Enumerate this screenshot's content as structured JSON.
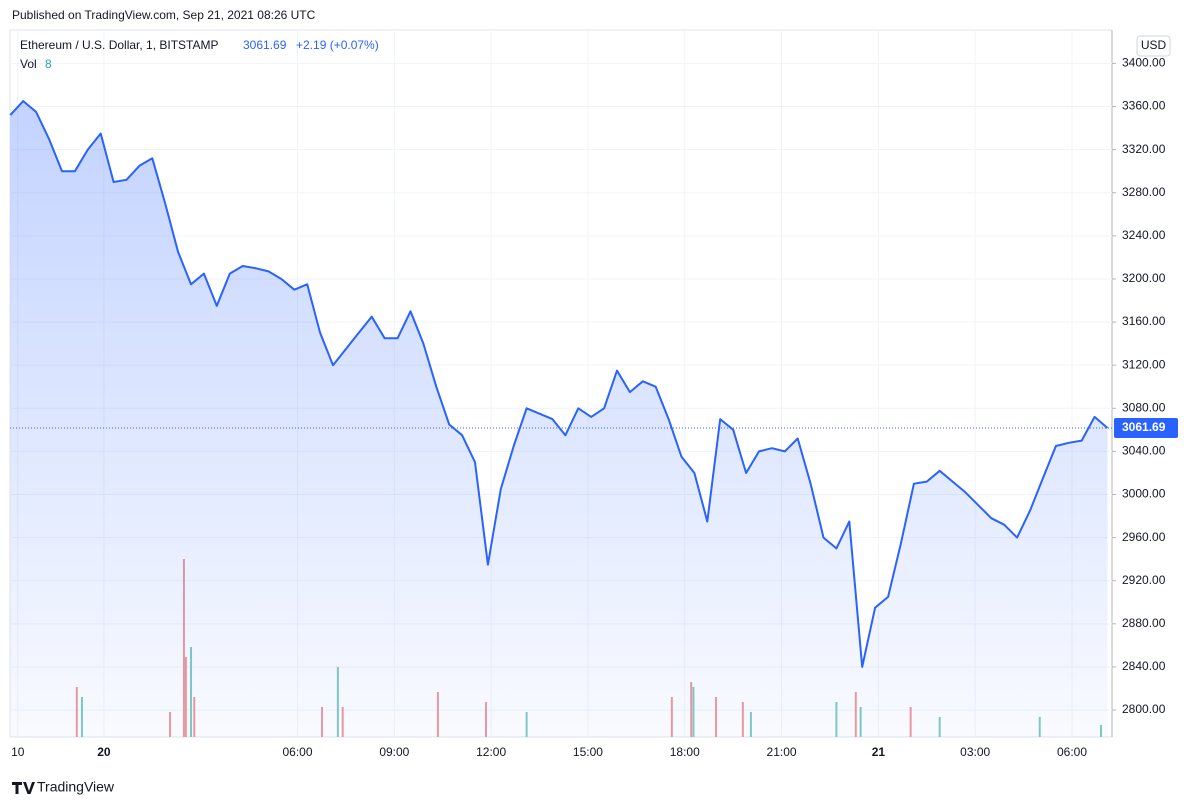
{
  "header": {
    "published": "Published on TradingView.com, Sep 21, 2021 08:26 UTC"
  },
  "footer": {
    "brand": "TradingView"
  },
  "chart_data": {
    "type": "area",
    "currency": "USD",
    "change": "+2.19 (+0.07%)",
    "x": [
      -2.9,
      -2.5,
      -2.1,
      -1.7,
      -1.3,
      -0.9,
      -0.5,
      -0.1,
      0.3,
      0.7,
      1.1,
      1.5,
      1.9,
      2.3,
      2.7,
      3.1,
      3.5,
      3.9,
      4.3,
      4.7,
      5.1,
      5.5,
      5.9,
      6.3,
      6.7,
      7.1,
      7.5,
      7.9,
      8.3,
      8.7,
      9.1,
      9.5,
      9.9,
      10.3,
      10.7,
      11.1,
      11.5,
      11.9,
      12.3,
      12.7,
      13.1,
      13.5,
      13.9,
      14.3,
      14.7,
      15.1,
      15.5,
      15.9,
      16.3,
      16.7,
      17.1,
      17.5,
      17.9,
      18.3,
      18.7,
      19.1,
      19.5,
      19.9,
      20.3,
      20.7,
      21.1,
      21.5,
      21.9,
      22.3,
      22.7,
      23.1,
      23.5,
      23.9,
      24.3,
      24.7,
      25.1,
      25.5,
      25.9,
      26.3,
      26.7,
      27.1,
      27.5,
      27.9,
      28.3,
      28.7,
      29.1,
      29.5,
      29.9,
      30.3,
      30.7,
      31.1
    ],
    "series": [
      {
        "name": "Ethereum / U.S. Dollar, 1, BITSTAMP",
        "color": "#2962ff",
        "values": [
          3352,
          3365,
          3355,
          3330,
          3300,
          3300,
          3320,
          3335,
          3290,
          3292,
          3305,
          3312,
          3270,
          3225,
          3195,
          3205,
          3175,
          3205,
          3212,
          3210,
          3207,
          3200,
          3190,
          3195,
          3150,
          3120,
          3135,
          3150,
          3165,
          3145,
          3145,
          3170,
          3140,
          3100,
          3065,
          3055,
          3030,
          2935,
          3005,
          3045,
          3080,
          3075,
          3070,
          3055,
          3080,
          3072,
          3080,
          3115,
          3095,
          3105,
          3100,
          3070,
          3035,
          3020,
          2975,
          3070,
          3060,
          3020,
          3040,
          3043,
          3040,
          3052,
          3010,
          2960,
          2950,
          2975,
          2840,
          2895,
          2905,
          2955,
          3010,
          3012,
          3022,
          3012,
          3002,
          2990,
          2978,
          2972,
          2960,
          2985,
          3015,
          3045,
          3048,
          3050,
          3072,
          3061.69
        ]
      }
    ],
    "volume": {
      "name": "Vol",
      "last": 8,
      "x": [
        -0.84,
        -0.68,
        2.05,
        2.48,
        2.54,
        2.7,
        2.8,
        6.76,
        7.25,
        7.4,
        10.35,
        11.84,
        13.1,
        17.6,
        18.2,
        18.27,
        18.97,
        19.8,
        20.05,
        22.7,
        23.3,
        23.45,
        25.0,
        25.9,
        29.0,
        30.9
      ],
      "values": [
        50,
        40,
        25,
        178,
        80,
        90,
        40,
        30,
        70,
        30,
        45,
        35,
        25,
        40,
        55,
        50,
        40,
        35,
        25,
        35,
        45,
        30,
        30,
        20,
        20,
        12
      ],
      "colors": [
        "#ef9a9a",
        "#80cbc4",
        "#ef9a9a",
        "#ef9a9a",
        "#ef9a9a",
        "#80cbc4",
        "#ef9a9a",
        "#ef9a9a",
        "#80cbc4",
        "#ef9a9a",
        "#ef9a9a",
        "#ef9a9a",
        "#80cbc4",
        "#ef9a9a",
        "#ef9a9a",
        "#80cbc4",
        "#ef9a9a",
        "#ef9a9a",
        "#80cbc4",
        "#80cbc4",
        "#ef9a9a",
        "#80cbc4",
        "#ef9a9a",
        "#80cbc4",
        "#80cbc4",
        "#80cbc4"
      ],
      "ylim": [
        0,
        200
      ]
    },
    "xlim": [
      -2.91,
      31.24
    ],
    "ylim": [
      2775,
      3431
    ],
    "xticks": [
      {
        "value": -2.67,
        "label": "10"
      },
      {
        "value": 0,
        "label": "20"
      },
      {
        "value": 6,
        "label": "06:00"
      },
      {
        "value": 9,
        "label": "09:00"
      },
      {
        "value": 12,
        "label": "12:00"
      },
      {
        "value": 15,
        "label": "15:00"
      },
      {
        "value": 18,
        "label": "18:00"
      },
      {
        "value": 21,
        "label": "21:00"
      },
      {
        "value": 24,
        "label": "21"
      },
      {
        "value": 27,
        "label": "03:00"
      },
      {
        "value": 30,
        "label": "06:00"
      }
    ],
    "yticks": [
      {
        "value": 2800,
        "label": "2800.00"
      },
      {
        "value": 2840,
        "label": "2840.00"
      },
      {
        "value": 2880,
        "label": "2880.00"
      },
      {
        "value": 2920,
        "label": "2920.00"
      },
      {
        "value": 2960,
        "label": "2960.00"
      },
      {
        "value": 3000,
        "label": "3000.00"
      },
      {
        "value": 3040,
        "label": "3040.00"
      },
      {
        "value": 3080,
        "label": "3080.00"
      },
      {
        "value": 3120,
        "label": "3120.00"
      },
      {
        "value": 3160,
        "label": "3160.00"
      },
      {
        "value": 3200,
        "label": "3200.00"
      },
      {
        "value": 3240,
        "label": "3240.00"
      },
      {
        "value": 3280,
        "label": "3280.00"
      },
      {
        "value": 3320,
        "label": "3320.00"
      },
      {
        "value": 3360,
        "label": "3360.00"
      },
      {
        "value": 3400,
        "label": "3400.00"
      }
    ],
    "grid": true
  }
}
